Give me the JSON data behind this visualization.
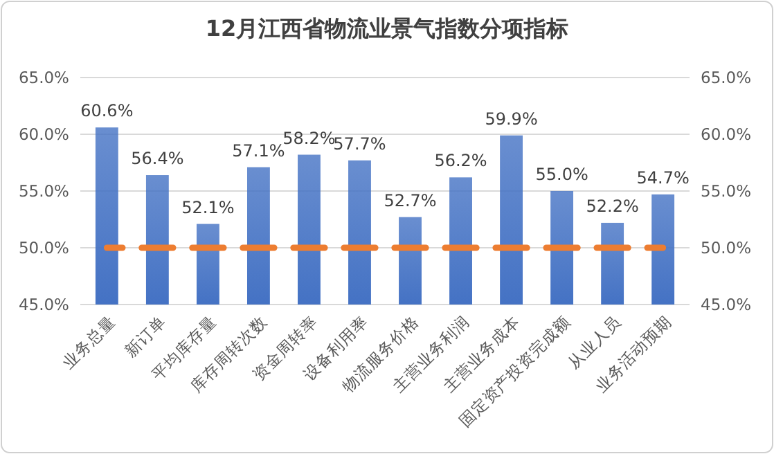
{
  "chart_data": {
    "type": "bar",
    "title": "12月江西省物流业景气指数分项指标",
    "categories": [
      "业务总量",
      "新订单",
      "平均库存量",
      "库存周转次数",
      "资金周转率",
      "设备利用率",
      "物流服务价格",
      "主营业务利润",
      "主营业务成本",
      "固定资产投资完成额",
      "从业人员",
      "业务活动预期"
    ],
    "series": [
      {
        "color": "#4472c4",
        "values": [
          60.6,
          56.4,
          52.1,
          57.1,
          58.2,
          57.7,
          52.7,
          56.2,
          59.9,
          55.0,
          52.2,
          54.7
        ],
        "value_labels": [
          "60.6%",
          "56.4%",
          "52.1%",
          "57.1%",
          "58.2%",
          "57.7%",
          "52.7%",
          "56.2%",
          "59.9%",
          "55.0%",
          "52.2%",
          "54.7%"
        ]
      },
      {
        "type": "line",
        "color": "#ed7d31",
        "line_style": "dashed",
        "values": [
          50,
          50,
          50,
          50,
          50,
          50,
          50,
          50,
          50,
          50,
          50,
          50
        ]
      }
    ],
    "ylim": [
      45,
      65
    ],
    "yticks": [
      {
        "value": 45,
        "label": "45.0%"
      },
      {
        "value": 50,
        "label": "50.0%"
      },
      {
        "value": 55,
        "label": "55.0%"
      },
      {
        "value": 60,
        "label": "60.0%"
      },
      {
        "value": 65,
        "label": "65.0%"
      }
    ],
    "y2lim": [
      45,
      65
    ],
    "y2ticks": [
      {
        "value": 45,
        "label": "45.0%"
      },
      {
        "value": 50,
        "label": "50.0%"
      },
      {
        "value": 55,
        "label": "55.0%"
      },
      {
        "value": 60,
        "label": "60.0%"
      },
      {
        "value": 65,
        "label": "65.0%"
      }
    ],
    "grid": "y"
  }
}
